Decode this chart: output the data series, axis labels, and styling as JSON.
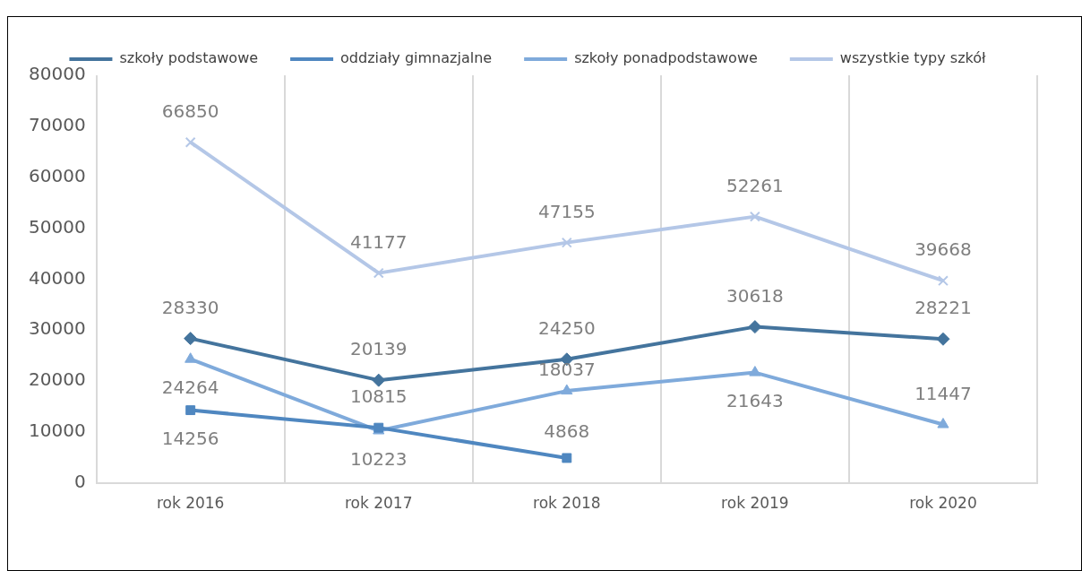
{
  "chart_data": {
    "type": "line",
    "categories": [
      "rok 2016",
      "rok 2017",
      "rok 2018",
      "rok 2019",
      "rok 2020"
    ],
    "series": [
      {
        "name": "szkoły podstawowe",
        "color": "#44749d",
        "values": [
          28330,
          20139,
          24250,
          30618,
          28221
        ],
        "marker": "diamond"
      },
      {
        "name": "oddziały gimnazjalne",
        "color": "#4f87c0",
        "values": [
          14256,
          10815,
          4868,
          null,
          null
        ],
        "marker": "square"
      },
      {
        "name": "szkoły ponadpodstawowe",
        "color": "#7faadb",
        "values": [
          24264,
          10223,
          18037,
          21643,
          11447
        ],
        "marker": "triangle"
      },
      {
        "name": "wszystkie typy szkół",
        "color": "#b4c7e7",
        "values": [
          66850,
          41177,
          47155,
          52261,
          39668
        ],
        "marker": "cross"
      }
    ],
    "ylim": [
      0,
      80000
    ],
    "yticks": [
      0,
      10000,
      20000,
      30000,
      40000,
      50000,
      60000,
      70000,
      80000
    ],
    "grid": "x",
    "legend": "top",
    "data_labels": true,
    "line_style": "solid"
  }
}
